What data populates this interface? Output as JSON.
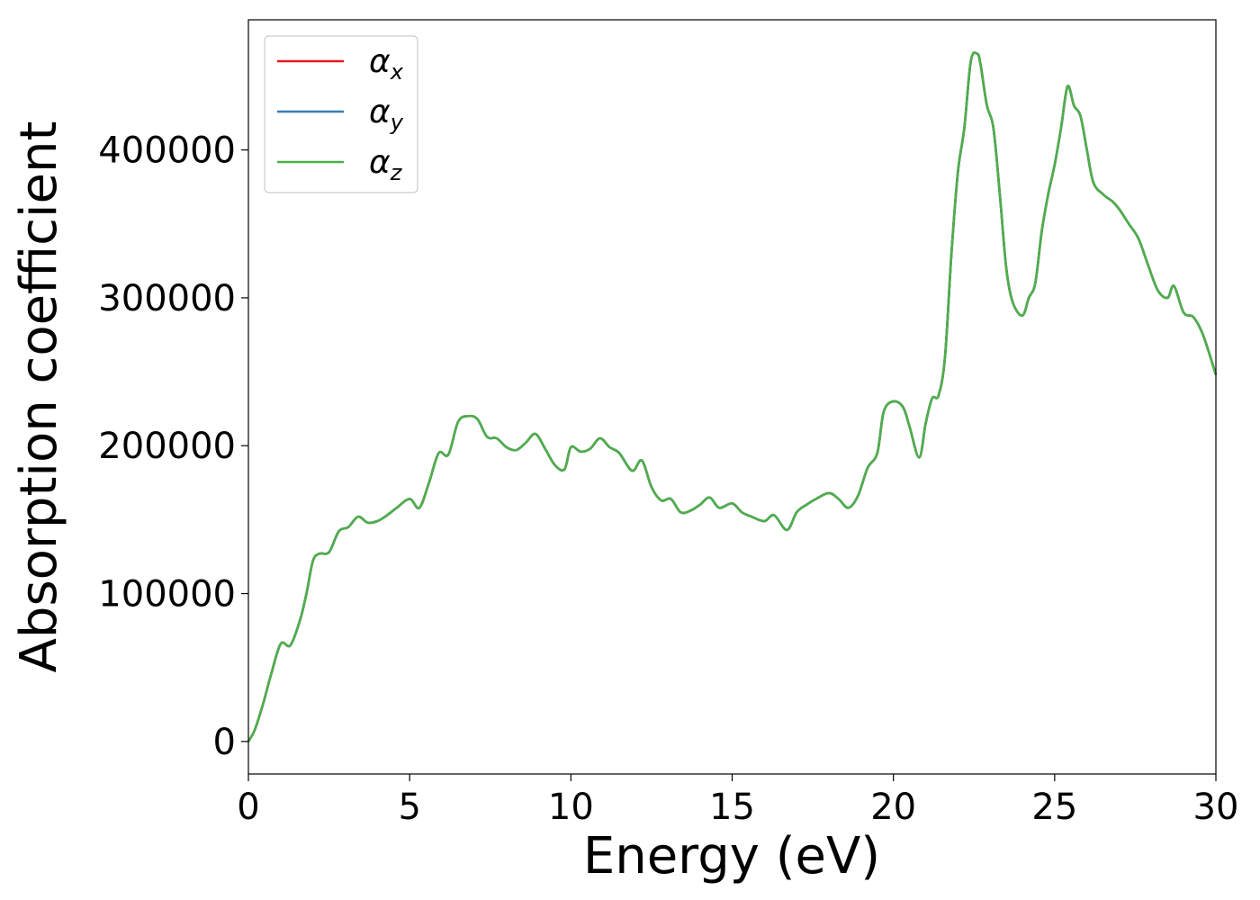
{
  "chart_data": {
    "type": "line",
    "xlabel": "Energy (eV)",
    "ylabel": "Absorption coefficient",
    "xlim": [
      0,
      30
    ],
    "ylim": [
      -22000,
      488000
    ],
    "x_ticks": [
      0,
      5,
      10,
      15,
      20,
      25,
      30
    ],
    "y_ticks": [
      0,
      100000,
      200000,
      300000,
      400000
    ],
    "grid": false,
    "legend_position": "top-left",
    "series": [
      {
        "name": "αx",
        "symbol": "α",
        "subscript": "x",
        "color": "#e41a1c",
        "x": [
          0,
          0.2,
          0.45,
          0.7,
          1.0,
          1.3,
          1.6,
          1.8,
          2.0,
          2.2,
          2.5,
          2.8,
          3.1,
          3.4,
          3.7,
          4.0,
          4.3,
          4.6,
          5.0,
          5.3,
          5.6,
          5.9,
          6.2,
          6.5,
          6.8,
          7.1,
          7.4,
          7.7,
          8.0,
          8.3,
          8.6,
          8.9,
          9.2,
          9.5,
          9.8,
          10.0,
          10.3,
          10.6,
          10.9,
          11.2,
          11.5,
          11.9,
          12.2,
          12.5,
          12.8,
          13.1,
          13.4,
          13.7,
          14.0,
          14.3,
          14.6,
          15.0,
          15.3,
          15.6,
          16.0,
          16.3,
          16.7,
          17.0,
          17.3,
          17.6,
          18.0,
          18.3,
          18.6,
          18.9,
          19.2,
          19.5,
          19.7,
          20.0,
          20.3,
          20.5,
          20.8,
          21.0,
          21.2,
          21.4,
          21.6,
          21.8,
          22.0,
          22.2,
          22.4,
          22.6,
          22.7,
          22.9,
          23.1,
          23.3,
          23.5,
          23.7,
          24.0,
          24.2,
          24.4,
          24.6,
          24.8,
          25.0,
          25.2,
          25.4,
          25.6,
          25.8,
          26.0,
          26.2,
          26.5,
          26.8,
          27.0,
          27.3,
          27.6,
          27.9,
          28.2,
          28.5,
          28.7,
          29.0,
          29.3,
          29.6,
          30.0
        ],
        "values": [
          0,
          8000,
          25000,
          45000,
          66000,
          65000,
          82000,
          100000,
          122000,
          127000,
          128000,
          142000,
          145000,
          152000,
          148000,
          149000,
          153000,
          158000,
          164000,
          158000,
          175000,
          195000,
          194000,
          216000,
          220000,
          218000,
          206000,
          205000,
          199000,
          197000,
          202000,
          208000,
          198000,
          187000,
          184000,
          199000,
          196000,
          198000,
          205000,
          199000,
          195000,
          183000,
          190000,
          172000,
          163000,
          164000,
          155000,
          156000,
          160000,
          165000,
          158000,
          161000,
          155000,
          152000,
          149000,
          153000,
          143000,
          155000,
          160000,
          164000,
          168000,
          164000,
          158000,
          166000,
          185000,
          195000,
          223000,
          230000,
          226000,
          213000,
          192000,
          215000,
          232000,
          234000,
          260000,
          330000,
          385000,
          415000,
          460000,
          465000,
          458000,
          430000,
          415000,
          370000,
          320000,
          297000,
          288000,
          300000,
          310000,
          345000,
          370000,
          390000,
          415000,
          443000,
          430000,
          423000,
          400000,
          378000,
          370000,
          365000,
          360000,
          350000,
          340000,
          322000,
          305000,
          300000,
          308000,
          290000,
          287000,
          275000,
          248000
        ]
      },
      {
        "name": "αy",
        "symbol": "α",
        "subscript": "y",
        "color": "#377eb8",
        "x": [
          0,
          0.2,
          0.45,
          0.7,
          1.0,
          1.3,
          1.6,
          1.8,
          2.0,
          2.2,
          2.5,
          2.8,
          3.1,
          3.4,
          3.7,
          4.0,
          4.3,
          4.6,
          5.0,
          5.3,
          5.6,
          5.9,
          6.2,
          6.5,
          6.8,
          7.1,
          7.4,
          7.7,
          8.0,
          8.3,
          8.6,
          8.9,
          9.2,
          9.5,
          9.8,
          10.0,
          10.3,
          10.6,
          10.9,
          11.2,
          11.5,
          11.9,
          12.2,
          12.5,
          12.8,
          13.1,
          13.4,
          13.7,
          14.0,
          14.3,
          14.6,
          15.0,
          15.3,
          15.6,
          16.0,
          16.3,
          16.7,
          17.0,
          17.3,
          17.6,
          18.0,
          18.3,
          18.6,
          18.9,
          19.2,
          19.5,
          19.7,
          20.0,
          20.3,
          20.5,
          20.8,
          21.0,
          21.2,
          21.4,
          21.6,
          21.8,
          22.0,
          22.2,
          22.4,
          22.6,
          22.7,
          22.9,
          23.1,
          23.3,
          23.5,
          23.7,
          24.0,
          24.2,
          24.4,
          24.6,
          24.8,
          25.0,
          25.2,
          25.4,
          25.6,
          25.8,
          26.0,
          26.2,
          26.5,
          26.8,
          27.0,
          27.3,
          27.6,
          27.9,
          28.2,
          28.5,
          28.7,
          29.0,
          29.3,
          29.6,
          30.0
        ],
        "values": [
          0,
          8000,
          25000,
          45000,
          66000,
          65000,
          82000,
          100000,
          122000,
          127000,
          128000,
          142000,
          145000,
          152000,
          148000,
          149000,
          153000,
          158000,
          164000,
          158000,
          175000,
          195000,
          194000,
          216000,
          220000,
          218000,
          206000,
          205000,
          199000,
          197000,
          202000,
          208000,
          198000,
          187000,
          184000,
          199000,
          196000,
          198000,
          205000,
          199000,
          195000,
          183000,
          190000,
          172000,
          163000,
          164000,
          155000,
          156000,
          160000,
          165000,
          158000,
          161000,
          155000,
          152000,
          149000,
          153000,
          143000,
          155000,
          160000,
          164000,
          168000,
          164000,
          158000,
          166000,
          185000,
          195000,
          223000,
          230000,
          226000,
          213000,
          192000,
          215000,
          232000,
          234000,
          260000,
          330000,
          385000,
          415000,
          460000,
          465000,
          458000,
          430000,
          415000,
          370000,
          320000,
          297000,
          288000,
          300000,
          310000,
          345000,
          370000,
          390000,
          415000,
          443000,
          430000,
          423000,
          400000,
          378000,
          370000,
          365000,
          360000,
          350000,
          340000,
          322000,
          305000,
          300000,
          308000,
          290000,
          287000,
          275000,
          248000
        ]
      },
      {
        "name": "αz",
        "symbol": "α",
        "subscript": "z",
        "color": "#4daf4a",
        "x": [
          0,
          0.2,
          0.45,
          0.7,
          1.0,
          1.3,
          1.6,
          1.8,
          2.0,
          2.2,
          2.5,
          2.8,
          3.1,
          3.4,
          3.7,
          4.0,
          4.3,
          4.6,
          5.0,
          5.3,
          5.6,
          5.9,
          6.2,
          6.5,
          6.8,
          7.1,
          7.4,
          7.7,
          8.0,
          8.3,
          8.6,
          8.9,
          9.2,
          9.5,
          9.8,
          10.0,
          10.3,
          10.6,
          10.9,
          11.2,
          11.5,
          11.9,
          12.2,
          12.5,
          12.8,
          13.1,
          13.4,
          13.7,
          14.0,
          14.3,
          14.6,
          15.0,
          15.3,
          15.6,
          16.0,
          16.3,
          16.7,
          17.0,
          17.3,
          17.6,
          18.0,
          18.3,
          18.6,
          18.9,
          19.2,
          19.5,
          19.7,
          20.0,
          20.3,
          20.5,
          20.8,
          21.0,
          21.2,
          21.4,
          21.6,
          21.8,
          22.0,
          22.2,
          22.4,
          22.6,
          22.7,
          22.9,
          23.1,
          23.3,
          23.5,
          23.7,
          24.0,
          24.2,
          24.4,
          24.6,
          24.8,
          25.0,
          25.2,
          25.4,
          25.6,
          25.8,
          26.0,
          26.2,
          26.5,
          26.8,
          27.0,
          27.3,
          27.6,
          27.9,
          28.2,
          28.5,
          28.7,
          29.0,
          29.3,
          29.6,
          30.0
        ],
        "values": [
          0,
          8000,
          25000,
          45000,
          66000,
          65000,
          82000,
          100000,
          122000,
          127000,
          128000,
          142000,
          145000,
          152000,
          148000,
          149000,
          153000,
          158000,
          164000,
          158000,
          175000,
          195000,
          194000,
          216000,
          220000,
          218000,
          206000,
          205000,
          199000,
          197000,
          202000,
          208000,
          198000,
          187000,
          184000,
          199000,
          196000,
          198000,
          205000,
          199000,
          195000,
          183000,
          190000,
          172000,
          163000,
          164000,
          155000,
          156000,
          160000,
          165000,
          158000,
          161000,
          155000,
          152000,
          149000,
          153000,
          143000,
          155000,
          160000,
          164000,
          168000,
          164000,
          158000,
          166000,
          185000,
          195000,
          223000,
          230000,
          226000,
          213000,
          192000,
          215000,
          232000,
          234000,
          260000,
          330000,
          385000,
          415000,
          460000,
          465000,
          458000,
          430000,
          415000,
          370000,
          320000,
          297000,
          288000,
          300000,
          310000,
          345000,
          370000,
          390000,
          415000,
          443000,
          430000,
          423000,
          400000,
          378000,
          370000,
          365000,
          360000,
          350000,
          340000,
          322000,
          305000,
          300000,
          308000,
          290000,
          287000,
          275000,
          248000
        ]
      }
    ]
  }
}
